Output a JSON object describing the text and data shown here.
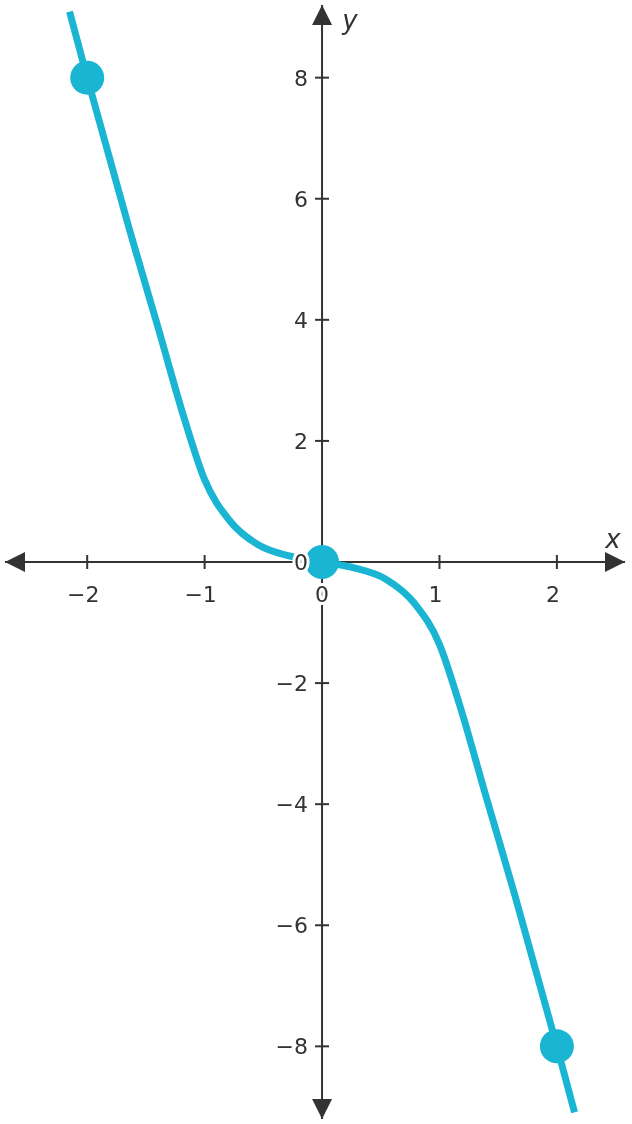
{
  "chart_data": {
    "type": "line",
    "xlabel": "x",
    "ylabel": "y",
    "xlim": [
      -2.7,
      2.58
    ],
    "ylim": [
      -9.2,
      9.2
    ],
    "xticks": [
      {
        "value": -2,
        "label": "−2"
      },
      {
        "value": -1,
        "label": "−1"
      },
      0,
      1,
      2
    ],
    "yticks": [
      {
        "value": -8,
        "label": "−8"
      },
      {
        "value": -6,
        "label": "−6"
      },
      {
        "value": -4,
        "label": "−4"
      },
      {
        "value": -2,
        "label": "−2"
      },
      0,
      2,
      4,
      6,
      8
    ],
    "grid": false,
    "series": [
      {
        "type": "line",
        "color": "#1ab5d3",
        "marker": "none",
        "x": [
          -2.15,
          -2,
          -1.64,
          -1.39,
          -1.17,
          -1,
          -0.79,
          -0.54,
          -0.28,
          0,
          0.28,
          0.54,
          0.79,
          1,
          1.17,
          1.39,
          1.64,
          2,
          2.15
        ],
        "values": [
          9.09,
          8,
          5.49,
          3.83,
          2.35,
          1.36,
          0.69,
          0.28,
          0.1,
          0,
          -0.1,
          -0.28,
          -0.69,
          -1.36,
          -2.35,
          -3.83,
          -5.49,
          -8,
          -9.09
        ]
      },
      {
        "type": "scatter",
        "color": "#1ab5d3",
        "marker": "circle",
        "x": [
          -2,
          0,
          2
        ],
        "values": [
          8,
          0,
          -8
        ]
      }
    ]
  }
}
